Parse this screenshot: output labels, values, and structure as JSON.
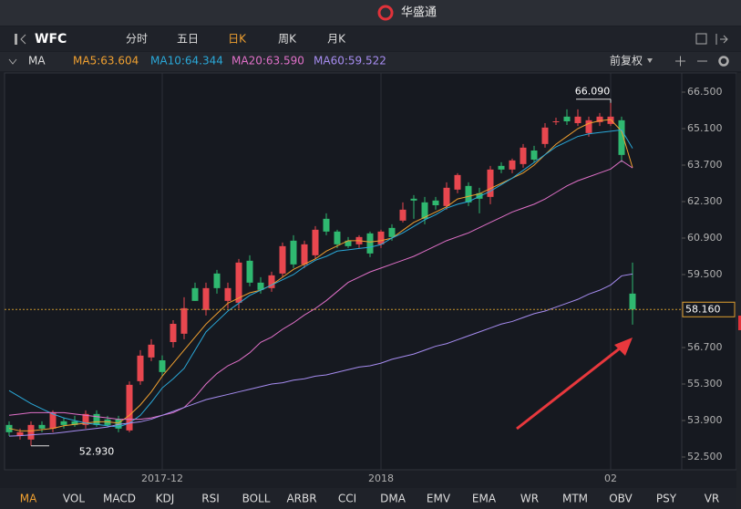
{
  "app_title": "华盛通",
  "toolbar": {
    "symbol": "WFC",
    "tabs": [
      "分时",
      "五日",
      "日K",
      "周K",
      "月K"
    ],
    "active_tab": 2
  },
  "ma_bar": {
    "label": "MA",
    "adjust": "前复权"
  },
  "chart_data": {
    "type": "candlestick",
    "categories": [
      null,
      null,
      null,
      null,
      null,
      null,
      null,
      null,
      null,
      null,
      null,
      null,
      null,
      null,
      "2017-12",
      null,
      null,
      null,
      null,
      null,
      null,
      null,
      null,
      null,
      null,
      null,
      null,
      null,
      null,
      null,
      null,
      null,
      null,
      null,
      "2018",
      null,
      null,
      null,
      null,
      null,
      null,
      null,
      null,
      null,
      null,
      null,
      null,
      null,
      null,
      null,
      null,
      null,
      null,
      null,
      null,
      "02",
      null,
      null
    ],
    "open": [
      53.73,
      53.31,
      53.17,
      53.73,
      53.59,
      53.87,
      53.87,
      53.73,
      54.15,
      53.94,
      53.94,
      53.52,
      55.41,
      56.32,
      56.21,
      56.91,
      57.23,
      58.98,
      58.14,
      59.54,
      58.49,
      58.42,
      60.03,
      59.19,
      58.98,
      59.54,
      60.8,
      59.89,
      60.24,
      61.64,
      61.15,
      60.8,
      60.66,
      61.08,
      60.66,
      61.29,
      61.57,
      62.41,
      62.27,
      62.34,
      62.13,
      62.76,
      62.9,
      62.62,
      62.48,
      63.67,
      63.53,
      63.74,
      64.26,
      64.51,
      65.35,
      65.56,
      65.31,
      64.93,
      65.35,
      65.28,
      65.42,
      58.77
    ],
    "high": [
      53.87,
      53.59,
      53.87,
      53.87,
      54.29,
      54.01,
      54.08,
      54.29,
      54.29,
      54.08,
      54.08,
      55.4,
      56.6,
      57.02,
      56.4,
      57.75,
      58.63,
      59.19,
      59.19,
      59.68,
      59.19,
      60.1,
      60.24,
      59.4,
      59.61,
      60.73,
      61.01,
      60.8,
      61.36,
      61.85,
      61.22,
      60.94,
      61.01,
      61.15,
      61.22,
      61.43,
      62.27,
      62.55,
      62.48,
      62.48,
      63.04,
      63.39,
      63.04,
      62.83,
      63.67,
      63.81,
      63.95,
      64.51,
      64.44,
      65.31,
      65.52,
      65.84,
      65.84,
      65.56,
      65.7,
      66.09,
      65.56,
      59.96
    ],
    "low": [
      53.31,
      53.17,
      52.93,
      53.45,
      53.45,
      53.59,
      53.66,
      53.59,
      53.66,
      53.66,
      53.45,
      53.45,
      55.27,
      56.18,
      55.62,
      56.7,
      57.02,
      58.49,
      57.93,
      58.77,
      58.2,
      58.2,
      59.05,
      58.77,
      58.84,
      59.4,
      59.75,
      59.75,
      60.1,
      61.01,
      60.52,
      60.52,
      60.52,
      60.17,
      60.52,
      60.8,
      61.5,
      61.64,
      61.43,
      61.99,
      61.99,
      62.62,
      62.13,
      61.85,
      62.2,
      63.39,
      63.39,
      63.6,
      63.81,
      64.37,
      65.24,
      65.24,
      65.2,
      64.79,
      65.2,
      65.2,
      63.81,
      57.58
    ],
    "close": [
      53.45,
      53.45,
      53.73,
      53.59,
      54.22,
      53.73,
      53.73,
      54.15,
      53.73,
      53.73,
      53.59,
      55.27,
      56.39,
      56.81,
      55.76,
      57.61,
      58.21,
      58.49,
      58.98,
      58.98,
      58.98,
      59.96,
      59.19,
      58.91,
      59.47,
      60.59,
      59.89,
      60.66,
      61.22,
      61.15,
      60.66,
      60.59,
      60.94,
      60.31,
      61.15,
      60.94,
      61.99,
      62.34,
      61.64,
      62.16,
      62.83,
      63.32,
      62.27,
      62.41,
      63.53,
      63.53,
      63.88,
      64.37,
      63.91,
      65.14,
      65.38,
      65.38,
      65.56,
      65.42,
      65.56,
      65.56,
      64.09,
      58.16
    ],
    "up_color": "#e8474f",
    "down_color": "#2fb870",
    "series": [
      {
        "name": "MA5:63.604",
        "color": "#f0a030",
        "values": [
          53.6,
          53.5,
          53.5,
          53.55,
          53.6,
          53.7,
          53.75,
          53.8,
          53.85,
          53.85,
          53.8,
          54.1,
          54.5,
          55.0,
          55.6,
          56.1,
          56.6,
          57.1,
          57.6,
          58.0,
          58.4,
          58.6,
          58.8,
          58.9,
          59.1,
          59.4,
          59.7,
          59.9,
          60.1,
          60.4,
          60.6,
          60.8,
          60.8,
          60.75,
          60.8,
          60.9,
          61.2,
          61.5,
          61.7,
          61.9,
          62.1,
          62.4,
          62.5,
          62.6,
          62.8,
          63.0,
          63.2,
          63.4,
          63.7,
          64.1,
          64.5,
          64.8,
          65.1,
          65.3,
          65.4,
          65.45,
          65.0,
          63.604
        ]
      },
      {
        "name": "MA10:64.344",
        "color": "#2aa8d8",
        "values": [
          55.05,
          54.8,
          54.55,
          54.35,
          54.15,
          54.0,
          53.9,
          53.8,
          53.75,
          53.7,
          53.65,
          53.8,
          54.1,
          54.6,
          55.15,
          55.5,
          55.9,
          56.6,
          57.3,
          57.7,
          58.1,
          58.4,
          58.7,
          58.9,
          59.1,
          59.3,
          59.5,
          59.8,
          60.05,
          60.2,
          60.4,
          60.45,
          60.5,
          60.55,
          60.65,
          60.9,
          61.1,
          61.35,
          61.6,
          61.8,
          62.05,
          62.2,
          62.3,
          62.5,
          62.7,
          62.95,
          63.2,
          63.5,
          63.8,
          64.1,
          64.4,
          64.6,
          64.8,
          64.9,
          64.95,
          65.0,
          65.05,
          64.344
        ]
      },
      {
        "name": "MA20:63.590",
        "color": "#e070c8",
        "values": [
          54.1,
          54.15,
          54.2,
          54.2,
          54.2,
          54.2,
          54.15,
          54.1,
          54.05,
          54.0,
          53.95,
          53.95,
          53.95,
          54.0,
          54.1,
          54.2,
          54.4,
          54.8,
          55.3,
          55.7,
          56.0,
          56.2,
          56.5,
          56.9,
          57.1,
          57.4,
          57.65,
          57.95,
          58.2,
          58.5,
          58.85,
          59.2,
          59.4,
          59.6,
          59.75,
          59.9,
          60.05,
          60.2,
          60.4,
          60.6,
          60.8,
          60.95,
          61.1,
          61.3,
          61.5,
          61.7,
          61.9,
          62.05,
          62.2,
          62.4,
          62.65,
          62.9,
          63.1,
          63.25,
          63.4,
          63.55,
          63.87,
          63.59
        ]
      },
      {
        "name": "MA60:59.522",
        "color": "#a68cf0",
        "values": [
          53.3,
          53.32,
          53.35,
          53.38,
          53.4,
          53.45,
          53.5,
          53.55,
          53.6,
          53.65,
          53.75,
          53.8,
          53.85,
          53.95,
          54.1,
          54.25,
          54.4,
          54.55,
          54.7,
          54.8,
          54.9,
          55.0,
          55.1,
          55.2,
          55.3,
          55.35,
          55.45,
          55.5,
          55.6,
          55.65,
          55.75,
          55.85,
          55.95,
          56.0,
          56.1,
          56.25,
          56.35,
          56.45,
          56.6,
          56.75,
          56.85,
          57.0,
          57.15,
          57.3,
          57.45,
          57.6,
          57.7,
          57.85,
          58.0,
          58.1,
          58.25,
          58.4,
          58.55,
          58.75,
          58.9,
          59.1,
          59.45,
          59.522
        ]
      }
    ],
    "ylim": [
      52.01,
      67.235
    ],
    "yticks": [
      {
        "value": 66.5,
        "label": "66.500"
      },
      {
        "value": 65.1,
        "label": "65.100"
      },
      {
        "value": 63.7,
        "label": "63.700"
      },
      {
        "value": 62.3,
        "label": "62.300"
      },
      {
        "value": 60.9,
        "label": "60.900"
      },
      {
        "value": 59.5,
        "label": "59.500"
      },
      {
        "value": 56.7,
        "label": "56.700"
      },
      {
        "value": 55.3,
        "label": "55.300"
      },
      {
        "value": 53.9,
        "label": "53.900"
      },
      {
        "value": 52.5,
        "label": "52.500"
      }
    ],
    "current_price": {
      "value": 58.16,
      "label": "58.160"
    },
    "high_label": {
      "value": 66.09,
      "label": "66.090"
    },
    "low_label": {
      "value": 52.93,
      "label": "52.930"
    }
  },
  "indicators": [
    "MA",
    "VOL",
    "MACD",
    "KDJ",
    "RSI",
    "BOLL",
    "ARBR",
    "CCI",
    "DMA",
    "EMV",
    "EMA",
    "WR",
    "MTM",
    "OBV",
    "PSY",
    "VR"
  ],
  "active_indicator": 0
}
